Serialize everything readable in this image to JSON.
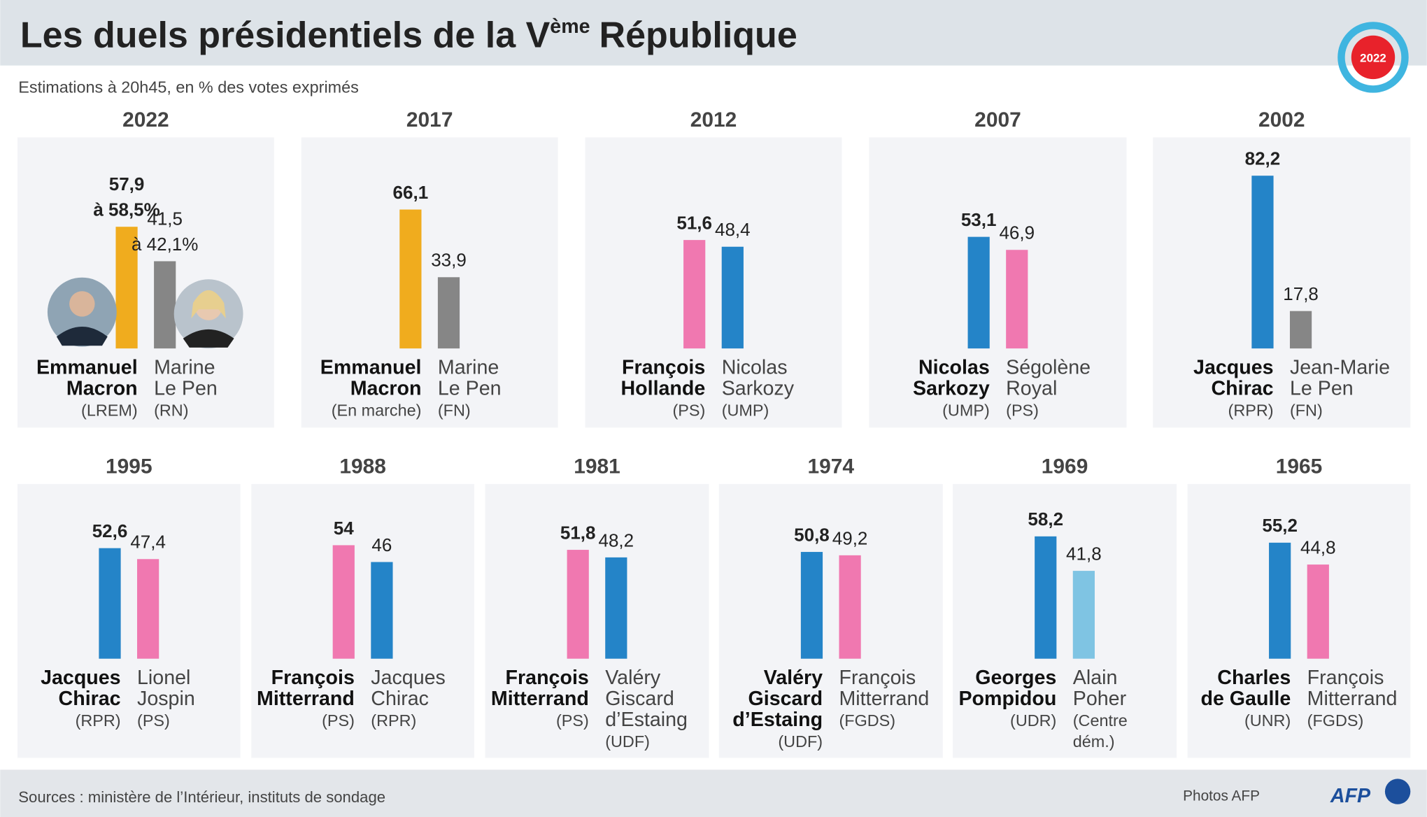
{
  "title": {
    "before": "Les duels présidentiels de la V",
    "superscript": "ème",
    "after": "République"
  },
  "subtitle": "Estimations à 20h45, en % des votes exprimés",
  "badge": "2022",
  "source": "Sources : ministère de l’Intérieur, instituts de sondage",
  "credit": "Photos AFP",
  "logo": "AFP",
  "chart_data": [
    {
      "type": "bar",
      "title": "2022",
      "categories": [
        [
          "Emmanuel",
          "Macron"
        ],
        [
          "Marine",
          "Le Pen"
        ]
      ],
      "parties": [
        [
          "(LREM)"
        ],
        [
          "(RN)"
        ]
      ],
      "values": [
        57.9,
        41.5
      ],
      "value_labels": [
        [
          "57,9",
          "à 58,5%"
        ],
        [
          "41,5",
          "à 42,1%"
        ]
      ],
      "colors": [
        "#f0ac1e",
        "#868686"
      ]
    },
    {
      "type": "bar",
      "title": "2017",
      "categories": [
        [
          "Emmanuel",
          "Macron"
        ],
        [
          "Marine",
          "Le Pen"
        ]
      ],
      "parties": [
        [
          "(En marche)"
        ],
        [
          "(FN)"
        ]
      ],
      "values": [
        66.1,
        33.9
      ],
      "value_labels": [
        [
          "66,1"
        ],
        [
          "33,9"
        ]
      ],
      "colors": [
        "#f0ac1e",
        "#868686"
      ]
    },
    {
      "type": "bar",
      "title": "2012",
      "categories": [
        [
          "François",
          "Hollande"
        ],
        [
          "Nicolas",
          "Sarkozy"
        ]
      ],
      "parties": [
        [
          "(PS)"
        ],
        [
          "(UMP)"
        ]
      ],
      "values": [
        51.6,
        48.4
      ],
      "value_labels": [
        [
          "51,6"
        ],
        [
          "48,4"
        ]
      ],
      "colors": [
        "#f078b0",
        "#2484c8"
      ]
    },
    {
      "type": "bar",
      "title": "2007",
      "categories": [
        [
          "Nicolas",
          "Sarkozy"
        ],
        [
          "Ségolène",
          "Royal"
        ]
      ],
      "parties": [
        [
          "(UMP)"
        ],
        [
          "(PS)"
        ]
      ],
      "values": [
        53.1,
        46.9
      ],
      "value_labels": [
        [
          "53,1"
        ],
        [
          "46,9"
        ]
      ],
      "colors": [
        "#2484c8",
        "#f078b0"
      ]
    },
    {
      "type": "bar",
      "title": "2002",
      "categories": [
        [
          "Jacques",
          "Chirac"
        ],
        [
          "Jean-Marie",
          "Le Pen"
        ]
      ],
      "parties": [
        [
          "(RPR)"
        ],
        [
          "(FN)"
        ]
      ],
      "values": [
        82.2,
        17.8
      ],
      "value_labels": [
        [
          "82,2"
        ],
        [
          "17,8"
        ]
      ],
      "colors": [
        "#2484c8",
        "#868686"
      ]
    },
    {
      "type": "bar",
      "title": "1995",
      "categories": [
        [
          "Jacques",
          "Chirac"
        ],
        [
          "Lionel",
          "Jospin"
        ]
      ],
      "parties": [
        [
          "(RPR)"
        ],
        [
          "(PS)"
        ]
      ],
      "values": [
        52.6,
        47.4
      ],
      "value_labels": [
        [
          "52,6"
        ],
        [
          "47,4"
        ]
      ],
      "colors": [
        "#2484c8",
        "#f078b0"
      ]
    },
    {
      "type": "bar",
      "title": "1988",
      "categories": [
        [
          "François",
          "Mitterrand"
        ],
        [
          "Jacques",
          "Chirac"
        ]
      ],
      "parties": [
        [
          "(PS)"
        ],
        [
          "(RPR)"
        ]
      ],
      "values": [
        54,
        46
      ],
      "colors": [
        "#f078b0",
        "#2484c8"
      ]
    },
    {
      "type": "bar",
      "title": "1981",
      "categories": [
        [
          "François",
          "Mitterrand"
        ],
        [
          "Valéry",
          "Giscard",
          "d’Estaing"
        ]
      ],
      "parties": [
        [
          "(PS)"
        ],
        [
          "(UDF)"
        ]
      ],
      "values": [
        51.8,
        48.2
      ],
      "value_labels": [
        [
          "51,8"
        ],
        [
          "48,2"
        ]
      ],
      "colors": [
        "#f078b0",
        "#2484c8"
      ]
    },
    {
      "type": "bar",
      "title": "1974",
      "categories": [
        [
          "Valéry",
          "Giscard",
          "d’Estaing"
        ],
        [
          "François",
          "Mitterrand"
        ]
      ],
      "parties": [
        [
          "(UDF)"
        ],
        [
          "(FGDS)"
        ]
      ],
      "values": [
        50.8,
        49.2
      ],
      "value_labels": [
        [
          "50,8"
        ],
        [
          "49,2"
        ]
      ],
      "colors": [
        "#2484c8",
        "#f078b0"
      ]
    },
    {
      "type": "bar",
      "title": "1969",
      "categories": [
        [
          "Georges",
          "Pompidou"
        ],
        [
          "Alain",
          "Poher"
        ]
      ],
      "parties": [
        [
          "(UDR)"
        ],
        [
          "(Centre",
          "dém.)"
        ]
      ],
      "values": [
        58.2,
        41.8
      ],
      "value_labels": [
        [
          "58,2"
        ],
        [
          "41,8"
        ]
      ],
      "colors": [
        "#2484c8",
        "#7fc4e3"
      ]
    },
    {
      "type": "bar",
      "title": "1965",
      "categories": [
        [
          "Charles",
          "de Gaulle"
        ],
        [
          "François",
          "Mitterrand"
        ]
      ],
      "parties": [
        [
          "(UNR)"
        ],
        [
          "(FGDS)"
        ]
      ],
      "values": [
        55.2,
        44.8
      ],
      "value_labels": [
        [
          "55,2"
        ],
        [
          "44,8"
        ]
      ],
      "colors": [
        "#2484c8",
        "#f078b0"
      ]
    }
  ]
}
